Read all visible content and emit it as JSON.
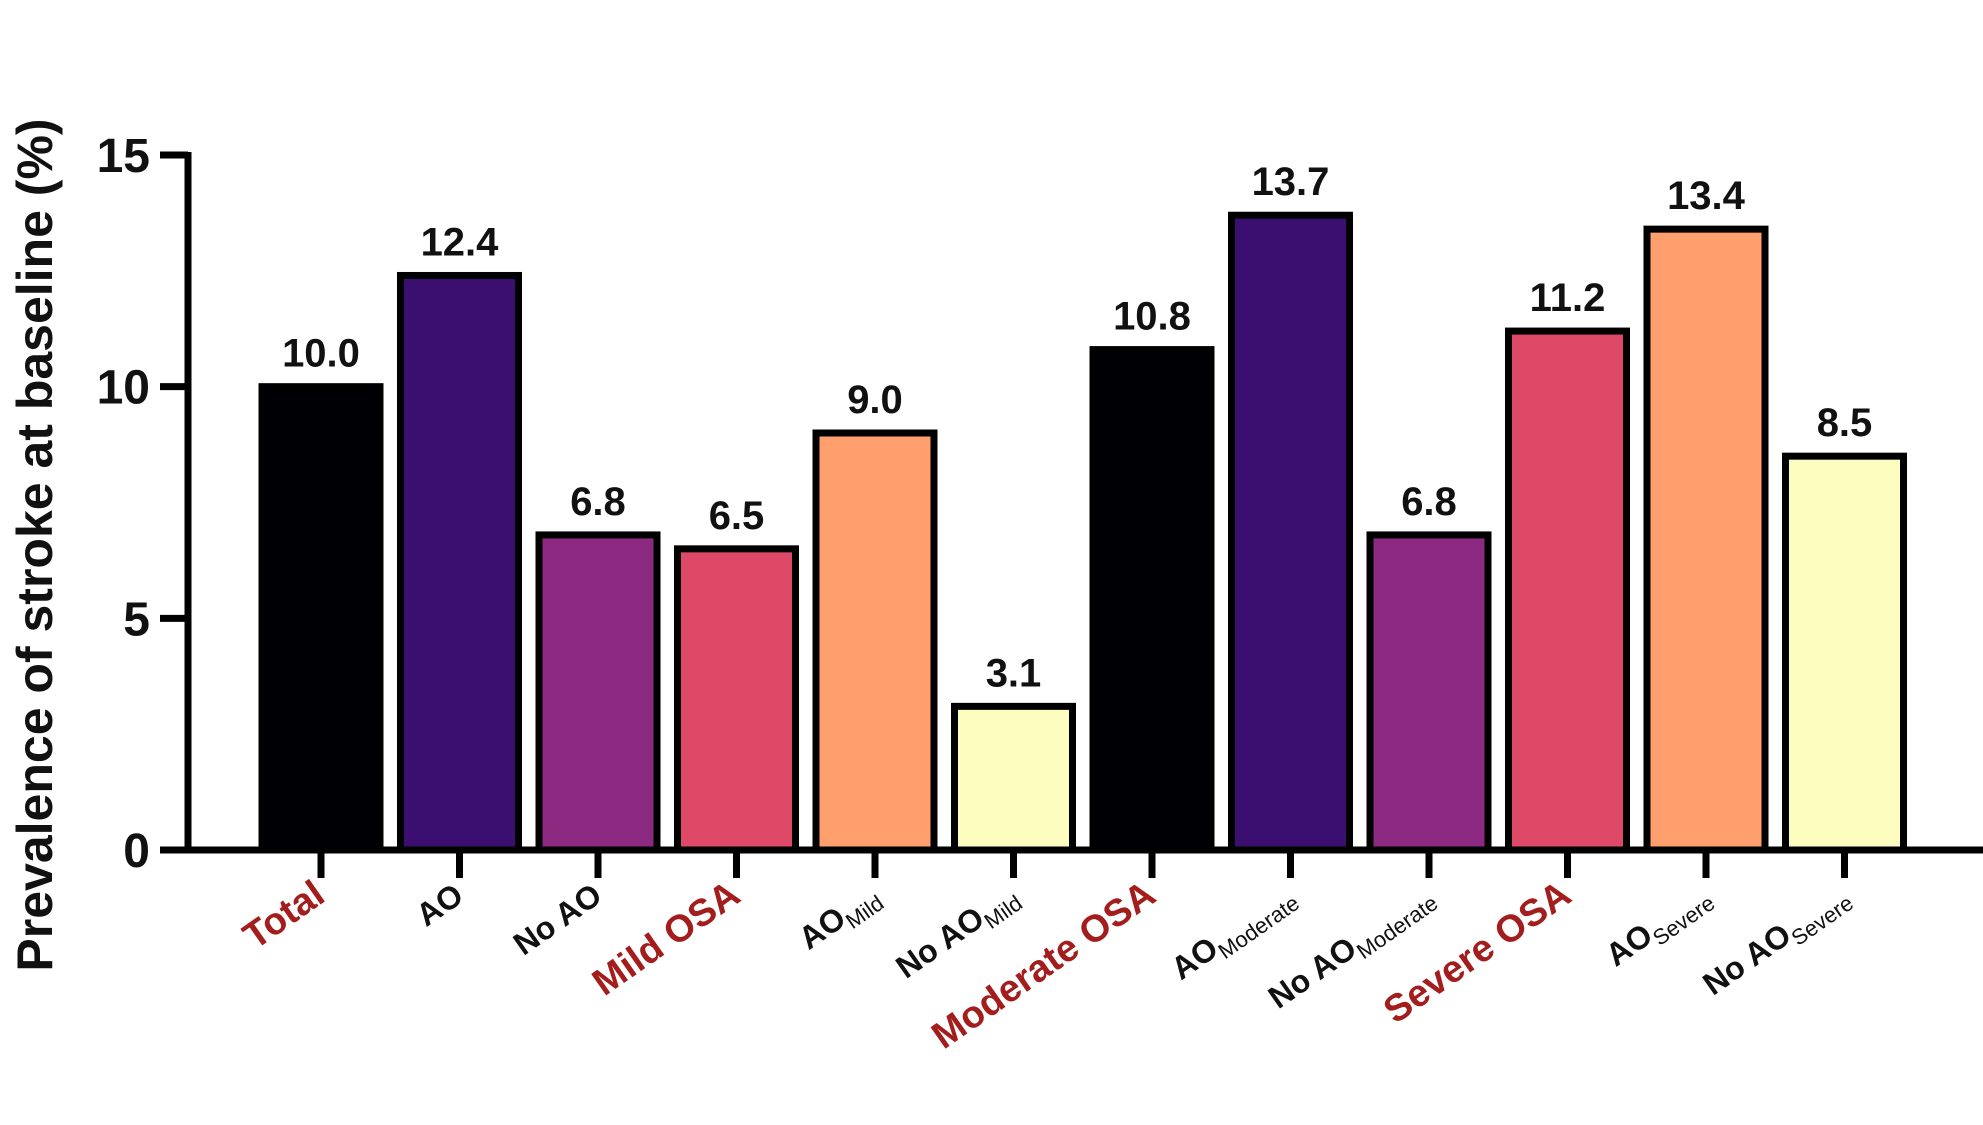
{
  "chart_data": {
    "type": "bar",
    "ylabel": "Prevalence of stroke at baseline (%)",
    "ylim": [
      0,
      15
    ],
    "yticks": [
      0,
      5,
      10,
      15
    ],
    "grid": false,
    "categories": [
      {
        "main": "Total",
        "sub": "",
        "group": true,
        "color": "#000004"
      },
      {
        "main": "AO",
        "sub": "",
        "group": false,
        "color": "#3b0f70"
      },
      {
        "main": "No AO",
        "sub": "",
        "group": false,
        "color": "#8c2981"
      },
      {
        "main": "Mild OSA",
        "sub": "",
        "group": true,
        "color": "#de4968"
      },
      {
        "main": "AO",
        "sub": "Mild",
        "group": false,
        "color": "#fe9f6d"
      },
      {
        "main": "No AO",
        "sub": "Mild",
        "group": false,
        "color": "#fcfdbf"
      },
      {
        "main": "Moderate OSA",
        "sub": "",
        "group": true,
        "color": "#000004"
      },
      {
        "main": "AO",
        "sub": "Moderate",
        "group": false,
        "color": "#3b0f70"
      },
      {
        "main": "No AO",
        "sub": "Moderate",
        "group": false,
        "color": "#8c2981"
      },
      {
        "main": "Severe OSA",
        "sub": "",
        "group": true,
        "color": "#de4968"
      },
      {
        "main": "AO",
        "sub": "Severe",
        "group": false,
        "color": "#fe9f6d"
      },
      {
        "main": "No AO",
        "sub": "Severe",
        "group": false,
        "color": "#fcfdbf"
      }
    ],
    "values": [
      10.0,
      12.4,
      6.8,
      6.5,
      9.0,
      3.1,
      10.8,
      13.7,
      6.8,
      11.2,
      13.4,
      8.5
    ],
    "value_labels": [
      "10.0",
      "12.4",
      "6.8",
      "6.5",
      "9.0",
      "3.1",
      "10.8",
      "13.7",
      "6.8",
      "11.2",
      "13.4",
      "8.5"
    ],
    "group_label_color": "#a31d1d"
  }
}
